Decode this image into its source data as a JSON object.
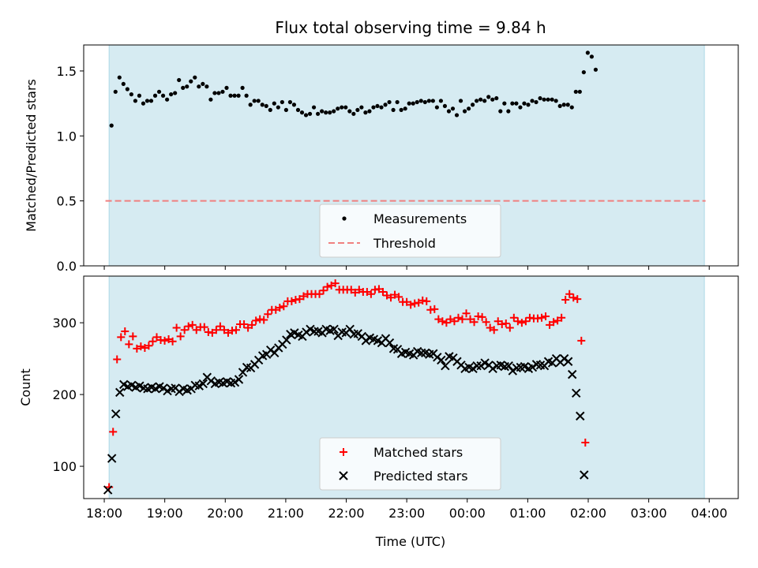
{
  "title": "Flux total observing time = 9.84 h",
  "colors": {
    "shade": "#add8e6",
    "threshold": "#f08080",
    "matched": "#ff0000",
    "predicted": "#000000",
    "measure": "#000000"
  },
  "chart_data": [
    {
      "type": "scatter",
      "ylabel": "Matched/Predicted stars",
      "ylim": [
        0,
        1.7
      ],
      "yticks": [
        0.0,
        0.5,
        1.0,
        1.5
      ],
      "ytick_labels": [
        "0.0",
        "0.5",
        "1.0",
        "1.5"
      ],
      "shaded_span_hours": [
        0.0,
        9.84
      ],
      "threshold": 0.5,
      "legend": {
        "position": "lower-center",
        "entries": [
          "Measurements",
          "Threshold"
        ]
      },
      "series": [
        {
          "name": "Measurements",
          "x_start": 0.04,
          "x_step": 0.0656,
          "values": [
            1.08,
            1.34,
            1.45,
            1.4,
            1.36,
            1.32,
            1.27,
            1.31,
            1.25,
            1.27,
            1.27,
            1.31,
            1.34,
            1.31,
            1.28,
            1.32,
            1.33,
            1.43,
            1.37,
            1.38,
            1.42,
            1.45,
            1.38,
            1.4,
            1.38,
            1.28,
            1.33,
            1.33,
            1.34,
            1.37,
            1.31,
            1.31,
            1.31,
            1.37,
            1.31,
            1.24,
            1.27,
            1.27,
            1.24,
            1.23,
            1.2,
            1.25,
            1.22,
            1.26,
            1.2,
            1.26,
            1.24,
            1.2,
            1.18,
            1.16,
            1.17,
            1.22,
            1.17,
            1.19,
            1.18,
            1.18,
            1.19,
            1.21,
            1.22,
            1.22,
            1.19,
            1.17,
            1.2,
            1.22,
            1.18,
            1.19,
            1.22,
            1.23,
            1.22,
            1.24,
            1.26,
            1.2,
            1.26,
            1.2,
            1.21,
            1.25,
            1.25,
            1.26,
            1.27,
            1.26,
            1.27,
            1.27,
            1.22,
            1.27,
            1.23,
            1.19,
            1.21,
            1.16,
            1.27,
            1.19,
            1.21,
            1.24,
            1.27,
            1.28,
            1.27,
            1.3,
            1.28,
            1.29,
            1.19,
            1.25,
            1.19,
            1.25,
            1.25,
            1.22,
            1.25,
            1.24,
            1.27,
            1.26,
            1.29,
            1.28,
            1.28,
            1.28,
            1.27,
            1.23,
            1.24,
            1.24,
            1.22,
            1.34,
            1.34,
            1.49,
            1.64,
            1.61,
            1.51
          ]
        }
      ]
    },
    {
      "type": "scatter",
      "xlabel": "Time (UTC)",
      "ylabel": "Count",
      "ylim": [
        55,
        365
      ],
      "yticks": [
        100,
        200,
        300
      ],
      "ytick_labels": [
        "100",
        "200",
        "300"
      ],
      "shaded_span_hours": [
        0.0,
        9.84
      ],
      "x_tick_labels": [
        "18:00",
        "19:00",
        "20:00",
        "21:00",
        "22:00",
        "23:00",
        "00:00",
        "01:00",
        "02:00",
        "03:00",
        "04:00"
      ],
      "x_tick_hours": [
        -0.08,
        0.92,
        1.92,
        2.92,
        3.92,
        4.92,
        5.92,
        6.92,
        7.92,
        8.92,
        9.92
      ],
      "legend": {
        "position": "lower-center",
        "entries": [
          "Matched stars",
          "Predicted stars"
        ]
      },
      "series": [
        {
          "name": "Matched stars",
          "marker": "+",
          "x_start": 0.0,
          "x_step": 0.0656,
          "values": [
            71,
            148,
            249,
            280,
            288,
            270,
            281,
            264,
            267,
            265,
            268,
            274,
            280,
            276,
            275,
            277,
            274,
            293,
            281,
            290,
            295,
            297,
            290,
            294,
            294,
            287,
            286,
            290,
            295,
            290,
            286,
            289,
            290,
            298,
            298,
            293,
            297,
            303,
            305,
            304,
            312,
            318,
            318,
            321,
            323,
            330,
            330,
            332,
            333,
            337,
            340,
            340,
            340,
            340,
            345,
            350,
            352,
            355,
            346,
            346,
            346,
            346,
            342,
            346,
            343,
            343,
            340,
            346,
            347,
            343,
            338,
            335,
            339,
            336,
            329,
            329,
            325,
            327,
            328,
            331,
            330,
            318,
            319,
            305,
            302,
            300,
            305,
            302,
            307,
            305,
            313,
            305,
            301,
            309,
            308,
            301,
            293,
            290,
            302,
            298,
            299,
            293,
            307,
            302,
            300,
            302,
            307,
            306,
            306,
            307,
            309,
            297,
            301,
            303,
            307,
            332,
            340,
            335,
            333,
            275,
            133
          ]
        },
        {
          "name": "Predicted stars",
          "marker": "x",
          "x_start": -0.02,
          "x_step": 0.0656,
          "values": [
            67,
            111,
            173,
            203,
            214,
            211,
            213,
            210,
            212,
            209,
            208,
            210,
            208,
            211,
            209,
            205,
            208,
            209,
            204,
            208,
            206,
            208,
            213,
            212,
            215,
            224,
            219,
            215,
            217,
            216,
            218,
            216,
            217,
            221,
            231,
            238,
            237,
            242,
            248,
            254,
            256,
            262,
            258,
            265,
            270,
            276,
            284,
            286,
            283,
            281,
            287,
            291,
            288,
            288,
            286,
            291,
            289,
            291,
            282,
            287,
            286,
            291,
            284,
            285,
            281,
            275,
            279,
            277,
            275,
            272,
            278,
            272,
            264,
            263,
            257,
            259,
            257,
            255,
            260,
            258,
            258,
            256,
            257,
            252,
            248,
            240,
            253,
            251,
            246,
            241,
            236,
            238,
            236,
            240,
            240,
            244,
            241,
            236,
            240,
            241,
            239,
            240,
            233,
            237,
            238,
            239,
            236,
            238,
            242,
            241,
            240,
            246,
            244,
            250,
            245,
            250,
            246,
            228,
            202,
            170,
            88
          ]
        }
      ]
    }
  ]
}
